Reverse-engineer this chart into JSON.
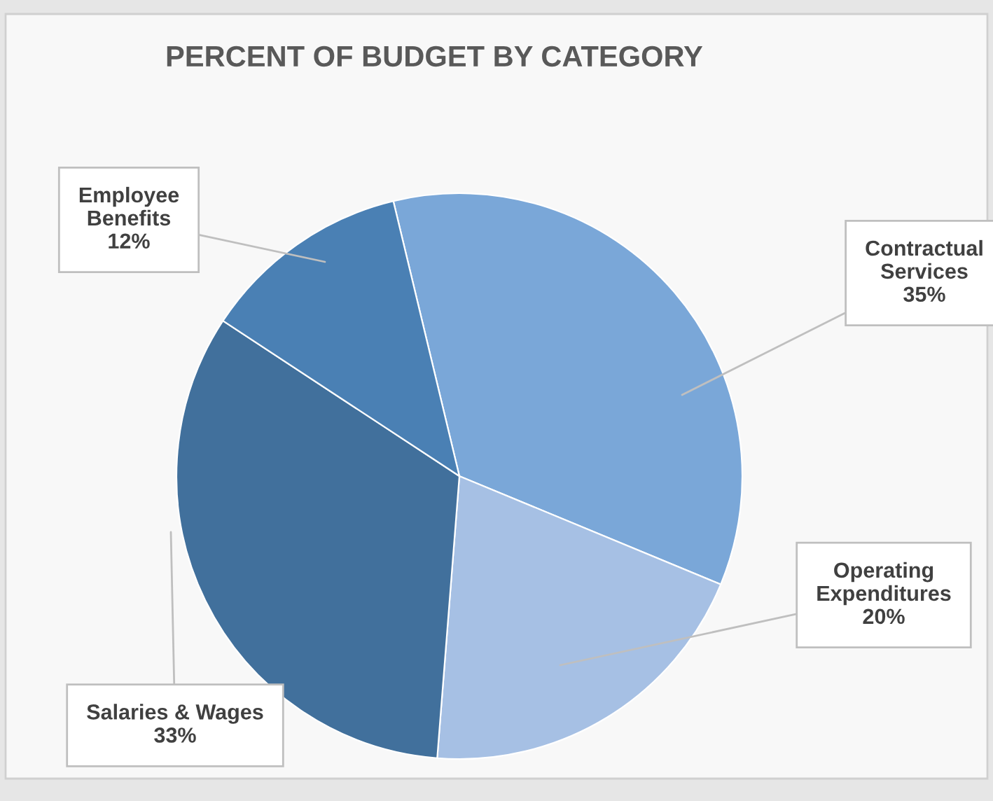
{
  "chart_data": {
    "type": "pie",
    "title": "PERCENT OF BUDGET BY CATEGORY",
    "categories": [
      "Contractual\nServices",
      "Operating\nExpenditures",
      "Salaries & Wages",
      "Employee\nBenefits"
    ],
    "values": [
      35,
      20,
      33,
      12
    ],
    "colors": [
      "#7aa7d8",
      "#a6c0e4",
      "#41709c",
      "#4a80b4"
    ],
    "value_labels": [
      "35%",
      "20%",
      "33%",
      "12%"
    ]
  }
}
